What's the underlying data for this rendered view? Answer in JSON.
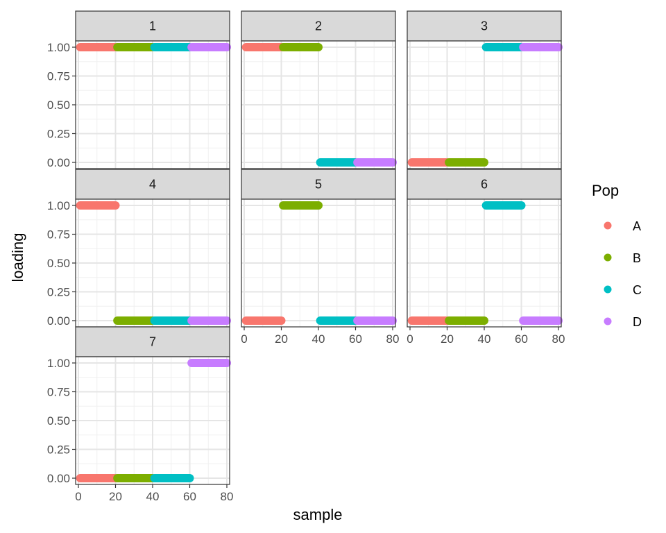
{
  "chart_data": {
    "type": "scatter",
    "title": "",
    "xlabel": "sample",
    "ylabel": "loading",
    "xlim": [
      0,
      80
    ],
    "ylim": [
      0,
      1
    ],
    "x_ticks": [
      "0",
      "20",
      "40",
      "60",
      "80"
    ],
    "y_ticks": [
      "0.00",
      "0.25",
      "0.50",
      "0.75",
      "1.00"
    ],
    "x_tick_values": [
      0,
      20,
      40,
      60,
      80
    ],
    "y_tick_values": [
      0,
      0.25,
      0.5,
      0.75,
      1
    ],
    "grid": true,
    "legend": {
      "title": "Pop",
      "position": "right",
      "entries": [
        {
          "label": "A",
          "color": "#F8766D"
        },
        {
          "label": "B",
          "color": "#7CAE00"
        },
        {
          "label": "C",
          "color": "#00BFC4"
        },
        {
          "label": "D",
          "color": "#C77CFF"
        }
      ]
    },
    "facets": [
      {
        "label": "1",
        "segments": [
          {
            "pop": "A",
            "x_start": 1,
            "x_end": 20,
            "y": 1
          },
          {
            "pop": "B",
            "x_start": 21,
            "x_end": 40,
            "y": 1
          },
          {
            "pop": "C",
            "x_start": 41,
            "x_end": 60,
            "y": 1
          },
          {
            "pop": "D",
            "x_start": 61,
            "x_end": 80,
            "y": 1
          }
        ]
      },
      {
        "label": "2",
        "segments": [
          {
            "pop": "A",
            "x_start": 1,
            "x_end": 20,
            "y": 1
          },
          {
            "pop": "B",
            "x_start": 21,
            "x_end": 40,
            "y": 1
          },
          {
            "pop": "C",
            "x_start": 41,
            "x_end": 60,
            "y": 0
          },
          {
            "pop": "D",
            "x_start": 61,
            "x_end": 80,
            "y": 0
          }
        ]
      },
      {
        "label": "3",
        "segments": [
          {
            "pop": "A",
            "x_start": 1,
            "x_end": 20,
            "y": 0
          },
          {
            "pop": "B",
            "x_start": 21,
            "x_end": 40,
            "y": 0
          },
          {
            "pop": "C",
            "x_start": 41,
            "x_end": 60,
            "y": 1
          },
          {
            "pop": "D",
            "x_start": 61,
            "x_end": 80,
            "y": 1
          }
        ]
      },
      {
        "label": "4",
        "segments": [
          {
            "pop": "A",
            "x_start": 1,
            "x_end": 20,
            "y": 1
          },
          {
            "pop": "B",
            "x_start": 21,
            "x_end": 40,
            "y": 0
          },
          {
            "pop": "C",
            "x_start": 41,
            "x_end": 60,
            "y": 0
          },
          {
            "pop": "D",
            "x_start": 61,
            "x_end": 80,
            "y": 0
          }
        ]
      },
      {
        "label": "5",
        "segments": [
          {
            "pop": "A",
            "x_start": 1,
            "x_end": 20,
            "y": 0
          },
          {
            "pop": "B",
            "x_start": 21,
            "x_end": 40,
            "y": 1
          },
          {
            "pop": "C",
            "x_start": 41,
            "x_end": 60,
            "y": 0
          },
          {
            "pop": "D",
            "x_start": 61,
            "x_end": 80,
            "y": 0
          }
        ]
      },
      {
        "label": "6",
        "segments": [
          {
            "pop": "A",
            "x_start": 1,
            "x_end": 20,
            "y": 0
          },
          {
            "pop": "B",
            "x_start": 21,
            "x_end": 40,
            "y": 0
          },
          {
            "pop": "C",
            "x_start": 41,
            "x_end": 60,
            "y": 1
          },
          {
            "pop": "D",
            "x_start": 61,
            "x_end": 80,
            "y": 0
          }
        ]
      },
      {
        "label": "7",
        "segments": [
          {
            "pop": "A",
            "x_start": 1,
            "x_end": 20,
            "y": 0
          },
          {
            "pop": "B",
            "x_start": 21,
            "x_end": 40,
            "y": 0
          },
          {
            "pop": "C",
            "x_start": 41,
            "x_end": 60,
            "y": 0
          },
          {
            "pop": "D",
            "x_start": 61,
            "x_end": 80,
            "y": 1
          }
        ]
      }
    ]
  }
}
